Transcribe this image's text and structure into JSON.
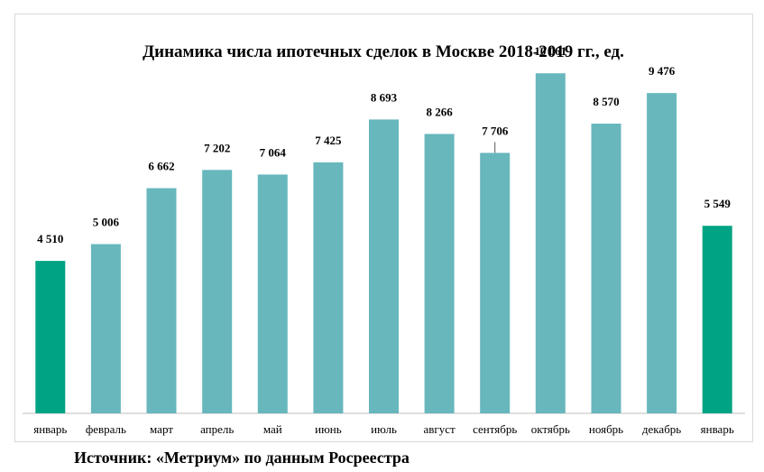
{
  "chart_data": {
    "type": "bar",
    "title": "Динамика числа ипотечных сделок в Москве 2018-2019 гг., ед.",
    "xlabel": "",
    "ylabel": "",
    "categories": [
      "январь",
      "февраль",
      "март",
      "апрель",
      "май",
      "июнь",
      "июль",
      "август",
      "сентябрь",
      "октябрь",
      "ноябрь",
      "декабрь",
      "январь"
    ],
    "values": [
      4510,
      5006,
      6662,
      7202,
      7064,
      7425,
      8693,
      8266,
      7706,
      10061,
      8570,
      9476,
      5549
    ],
    "value_labels": [
      "4 510",
      "5 006",
      "6 662",
      "7 202",
      "7 064",
      "7 425",
      "8 693",
      "8 266",
      "7 706",
      "10 061",
      "8 570",
      "9 476",
      "5 549"
    ],
    "bar_colors": [
      "#00a383",
      "#67b7bd",
      "#67b7bd",
      "#67b7bd",
      "#67b7bd",
      "#67b7bd",
      "#67b7bd",
      "#67b7bd",
      "#67b7bd",
      "#67b7bd",
      "#67b7bd",
      "#67b7bd",
      "#00a383"
    ],
    "ylim": [
      0,
      11000
    ],
    "grid": false,
    "legend": "none"
  },
  "source_note": "Источник: «Метриум» по данным Росреестра"
}
